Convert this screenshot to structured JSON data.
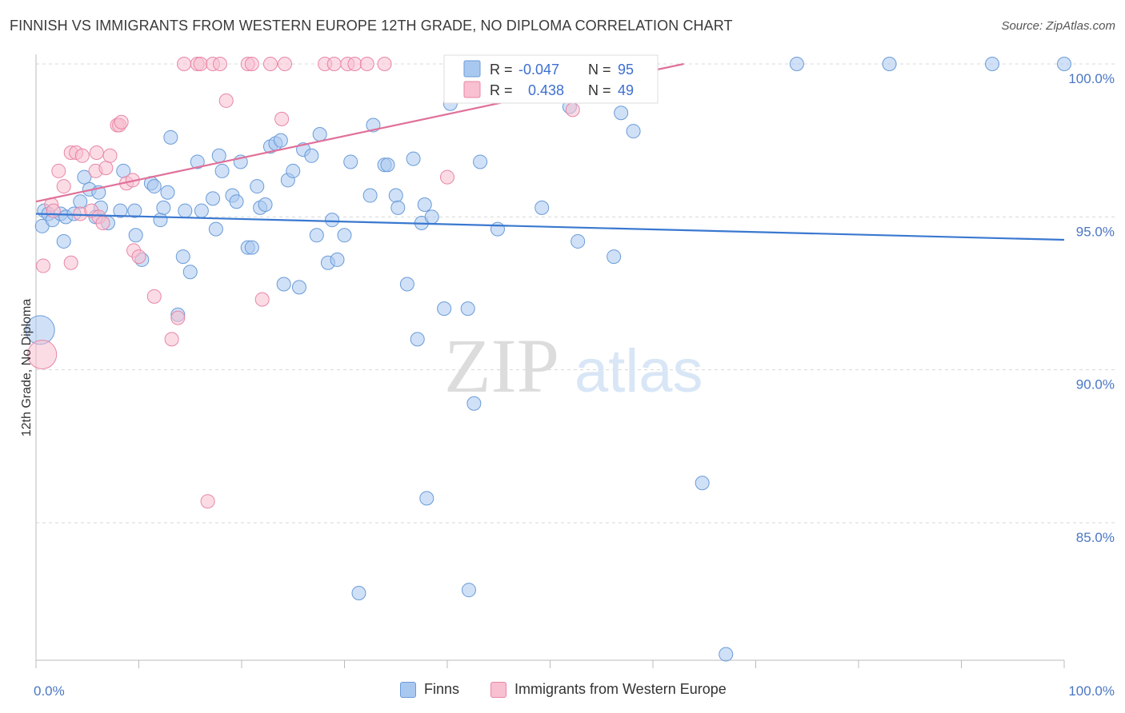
{
  "title": "FINNISH VS IMMIGRANTS FROM WESTERN EUROPE 12TH GRADE, NO DIPLOMA CORRELATION CHART",
  "source": "Source: ZipAtlas.com",
  "watermark": {
    "zip": "ZIP",
    "atlas": "atlas"
  },
  "colors": {
    "blue_fill": "#a9c8f0",
    "blue_stroke": "#6a9bd8",
    "blue_line": "#3a78d0",
    "pink_fill": "#f8c0d0",
    "pink_stroke": "#e886a6",
    "pink_line": "#e0709a",
    "axis_text": "#4a77c4",
    "grid": "#d8d8d8"
  },
  "stats_legend": {
    "rows": [
      {
        "r_label": "R =",
        "r_value": "-0.047",
        "n_label": "N =",
        "n_value": "95"
      },
      {
        "r_label": "R =",
        "r_value": "0.438",
        "n_label": "N =",
        "n_value": "49"
      }
    ]
  },
  "chart_data": {
    "type": "scatter",
    "title": "FINNISH VS IMMIGRANTS FROM WESTERN EUROPE 12TH GRADE, NO DIPLOMA CORRELATION CHART",
    "xlabel": "",
    "ylabel": "12th Grade, No Diploma",
    "xlim": [
      0,
      100
    ],
    "ylim": [
      80.5,
      100.5
    ],
    "x_tick_labels": [
      "0.0%",
      "100.0%"
    ],
    "y_ticks": [
      85,
      90,
      95,
      100
    ],
    "y_tick_labels": [
      "85.0%",
      "90.0%",
      "95.0%",
      "100.0%"
    ],
    "grid": true,
    "legend_position": "bottom",
    "series": [
      {
        "name": "Finns",
        "color": "#a9c8f0",
        "trend": {
          "x": [
            0,
            100
          ],
          "y": [
            95.1,
            94.25
          ]
        },
        "points": [
          [
            0.4,
            91.3
          ],
          [
            0.6,
            94.7
          ],
          [
            0.8,
            95.2
          ],
          [
            1.2,
            95.1
          ],
          [
            1.6,
            94.9
          ],
          [
            2.4,
            95.1
          ],
          [
            2.7,
            94.2
          ],
          [
            2.9,
            95.0
          ],
          [
            3.7,
            95.1
          ],
          [
            4.3,
            95.5
          ],
          [
            4.7,
            96.3
          ],
          [
            5.2,
            95.9
          ],
          [
            5.8,
            95.0
          ],
          [
            6.1,
            95.8
          ],
          [
            6.3,
            95.3
          ],
          [
            7.0,
            94.8
          ],
          [
            8.2,
            95.2
          ],
          [
            8.5,
            96.5
          ],
          [
            9.6,
            95.2
          ],
          [
            9.7,
            94.4
          ],
          [
            10.3,
            93.6
          ],
          [
            11.2,
            96.1
          ],
          [
            11.5,
            96.0
          ],
          [
            12.1,
            94.9
          ],
          [
            12.4,
            95.3
          ],
          [
            12.8,
            95.8
          ],
          [
            13.1,
            97.6
          ],
          [
            13.8,
            91.8
          ],
          [
            14.3,
            93.7
          ],
          [
            14.5,
            95.2
          ],
          [
            15.0,
            93.2
          ],
          [
            15.7,
            96.8
          ],
          [
            16.1,
            95.2
          ],
          [
            17.2,
            95.6
          ],
          [
            17.5,
            94.6
          ],
          [
            17.8,
            97.0
          ],
          [
            18.1,
            96.5
          ],
          [
            19.1,
            95.7
          ],
          [
            19.5,
            95.5
          ],
          [
            19.9,
            96.8
          ],
          [
            20.6,
            94.0
          ],
          [
            21.0,
            94.0
          ],
          [
            21.5,
            96.0
          ],
          [
            21.8,
            95.3
          ],
          [
            22.3,
            95.4
          ],
          [
            22.8,
            97.3
          ],
          [
            23.3,
            97.4
          ],
          [
            23.8,
            97.5
          ],
          [
            24.1,
            92.8
          ],
          [
            24.5,
            96.2
          ],
          [
            25.0,
            96.5
          ],
          [
            25.6,
            92.7
          ],
          [
            26.0,
            97.2
          ],
          [
            26.8,
            97.0
          ],
          [
            27.3,
            94.4
          ],
          [
            27.6,
            97.7
          ],
          [
            28.4,
            93.5
          ],
          [
            28.8,
            94.9
          ],
          [
            29.3,
            93.6
          ],
          [
            30.0,
            94.4
          ],
          [
            30.6,
            96.8
          ],
          [
            31.4,
            82.7
          ],
          [
            32.5,
            95.7
          ],
          [
            32.8,
            98.0
          ],
          [
            33.9,
            96.7
          ],
          [
            34.2,
            96.7
          ],
          [
            35.0,
            95.7
          ],
          [
            35.2,
            95.3
          ],
          [
            36.1,
            92.8
          ],
          [
            36.7,
            96.9
          ],
          [
            37.1,
            91.0
          ],
          [
            37.5,
            94.8
          ],
          [
            37.8,
            95.4
          ],
          [
            38.0,
            85.8
          ],
          [
            38.5,
            95.0
          ],
          [
            39.7,
            92.0
          ],
          [
            40.3,
            98.7
          ],
          [
            42.0,
            92.0
          ],
          [
            42.1,
            82.8
          ],
          [
            42.6,
            88.9
          ],
          [
            43.2,
            96.8
          ],
          [
            44.9,
            94.6
          ],
          [
            49.2,
            95.3
          ],
          [
            51.9,
            98.6
          ],
          [
            52.7,
            94.2
          ],
          [
            53.5,
            100.0
          ],
          [
            56.2,
            93.7
          ],
          [
            56.9,
            98.4
          ],
          [
            58.1,
            97.8
          ],
          [
            64.8,
            86.3
          ],
          [
            67.1,
            80.7
          ],
          [
            74.0,
            100.0
          ],
          [
            83.0,
            100.0
          ],
          [
            93.0,
            100.0
          ],
          [
            100.0,
            100.0
          ]
        ]
      },
      {
        "name": "Immigrants from Western Europe",
        "color": "#f8c0d0",
        "trend": {
          "x": [
            0,
            63
          ],
          "y": [
            95.5,
            100.0
          ]
        },
        "points": [
          [
            0.6,
            90.5
          ],
          [
            0.7,
            93.4
          ],
          [
            1.5,
            95.4
          ],
          [
            1.7,
            95.2
          ],
          [
            2.2,
            96.5
          ],
          [
            2.7,
            96.0
          ],
          [
            3.4,
            93.5
          ],
          [
            3.4,
            97.1
          ],
          [
            3.9,
            97.1
          ],
          [
            4.3,
            95.1
          ],
          [
            4.5,
            97.0
          ],
          [
            5.4,
            95.2
          ],
          [
            5.8,
            96.5
          ],
          [
            5.9,
            97.1
          ],
          [
            6.1,
            95.0
          ],
          [
            6.5,
            94.8
          ],
          [
            6.8,
            96.6
          ],
          [
            7.2,
            97.0
          ],
          [
            7.9,
            98.0
          ],
          [
            8.1,
            98.0
          ],
          [
            8.3,
            98.1
          ],
          [
            8.8,
            96.1
          ],
          [
            9.4,
            96.2
          ],
          [
            9.5,
            93.9
          ],
          [
            10.0,
            93.7
          ],
          [
            11.5,
            92.4
          ],
          [
            13.2,
            91.0
          ],
          [
            13.8,
            91.7
          ],
          [
            14.4,
            100.0
          ],
          [
            15.7,
            100.0
          ],
          [
            16.0,
            100.0
          ],
          [
            16.7,
            85.7
          ],
          [
            17.2,
            100.0
          ],
          [
            17.9,
            100.0
          ],
          [
            18.5,
            98.8
          ],
          [
            20.6,
            100.0
          ],
          [
            21.0,
            100.0
          ],
          [
            22.0,
            92.3
          ],
          [
            22.8,
            100.0
          ],
          [
            23.9,
            98.2
          ],
          [
            24.2,
            100.0
          ],
          [
            28.1,
            100.0
          ],
          [
            29.0,
            100.0
          ],
          [
            30.3,
            100.0
          ],
          [
            31.0,
            100.0
          ],
          [
            32.2,
            100.0
          ],
          [
            33.9,
            100.0
          ],
          [
            40.0,
            96.3
          ],
          [
            52.2,
            98.5
          ]
        ]
      }
    ]
  }
}
